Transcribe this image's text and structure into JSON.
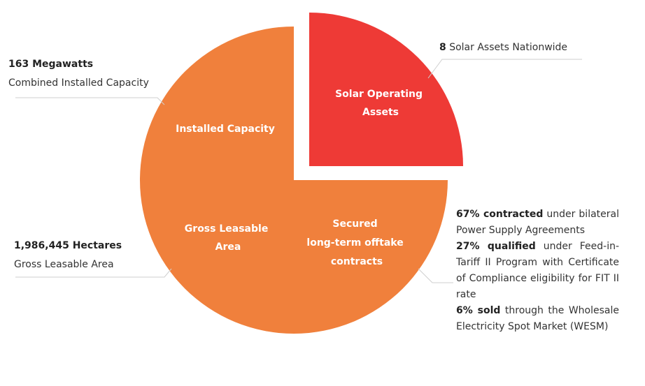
{
  "colors": {
    "main_segment": "#f0803c",
    "highlight_segment": "#ee3a36",
    "leader_line": "#cfcfcf",
    "text": "#333333"
  },
  "segments": {
    "installed_capacity": "Installed Capacity",
    "solar_operating_assets": [
      "Solar Operating",
      "Assets"
    ],
    "gross_leasable_area": [
      "Gross Leasable",
      "Area"
    ],
    "secured_offtake": [
      "Secured",
      "long-term offtake",
      "contracts"
    ]
  },
  "callouts": {
    "solar_assets": {
      "count": "8",
      "text": " Solar Assets Nationwide"
    },
    "capacity": {
      "value": "163 Megawatts",
      "text": "Combined Installed Capacity"
    },
    "area": {
      "value": "1,986,445 Hectares",
      "text": "Gross Leasable Area"
    },
    "offtake": [
      {
        "bold": "67% contracted",
        "text": " under bilateral Power Supply Agreements"
      },
      {
        "bold": "27% qualified",
        "text": " under Feed-in-Tariff II Program with Certificate of Compliance eligibility for FIT II rate"
      },
      {
        "bold": "6% sold",
        "text": " through the Wholesale Electricity Spot Market (WESM)"
      }
    ]
  }
}
